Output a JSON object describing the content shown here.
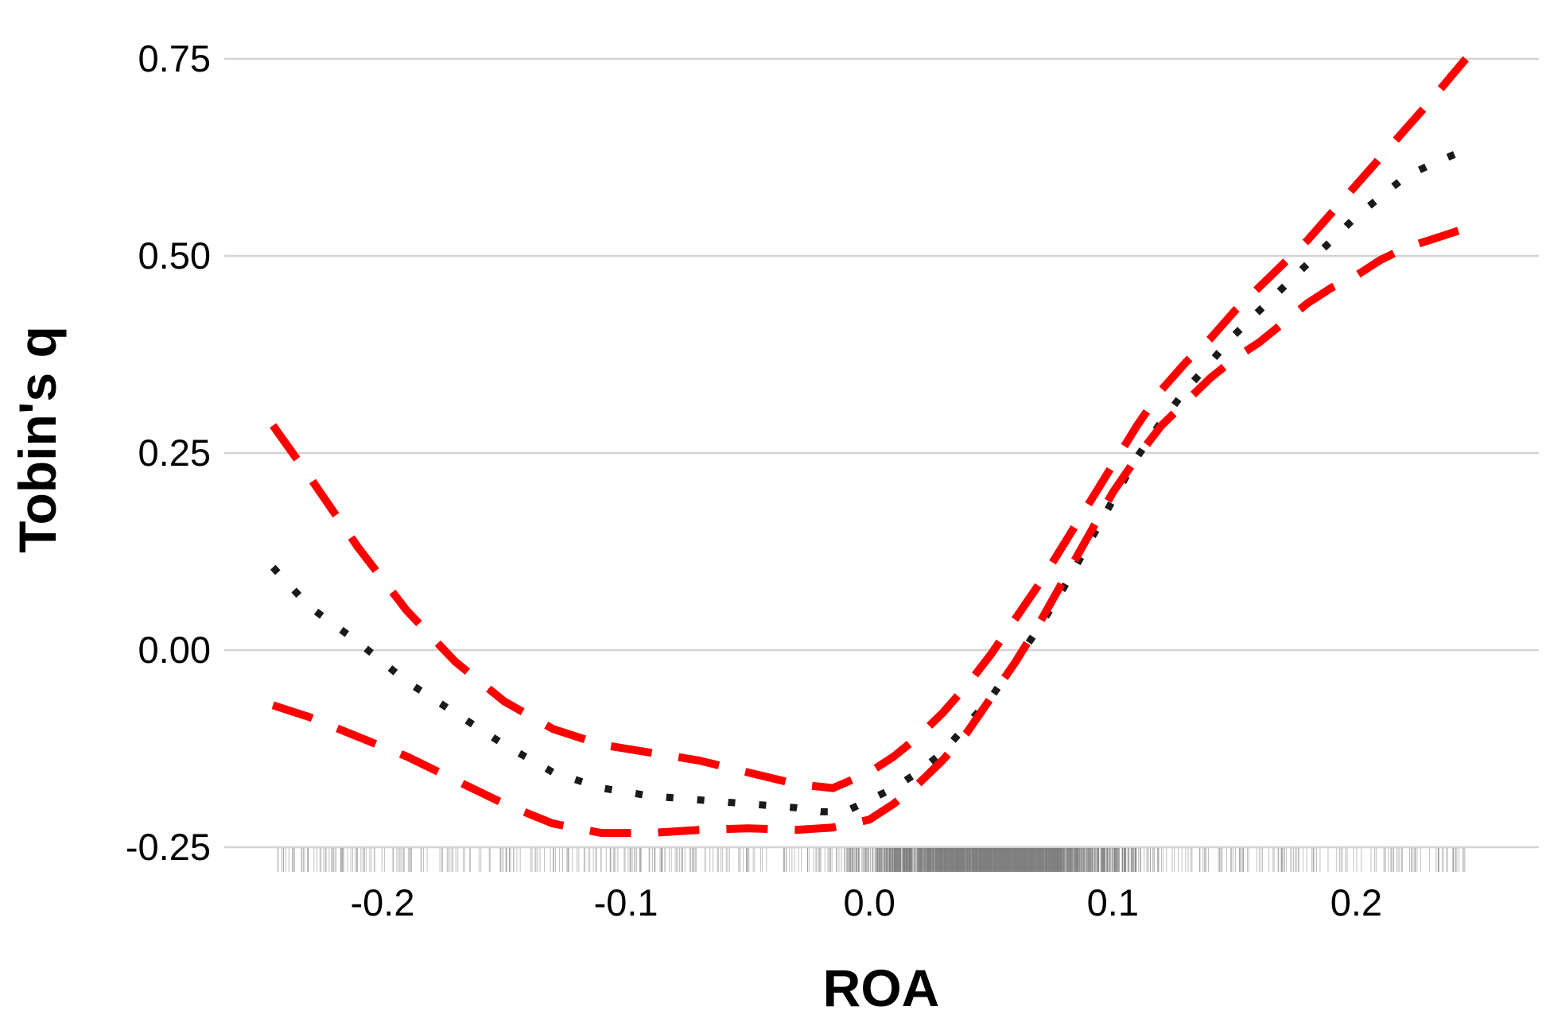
{
  "chart_data": {
    "type": "line",
    "title": "",
    "xlabel": "ROA",
    "ylabel": "Tobin's q",
    "xlim": [
      -0.265,
      0.275
    ],
    "ylim": [
      -0.25,
      0.75
    ],
    "x_ticks": [
      -0.2,
      -0.1,
      0.0,
      0.1,
      0.2
    ],
    "x_tick_labels": [
      "-0.2",
      "-0.1",
      "0.0",
      "0.1",
      "0.2"
    ],
    "y_ticks": [
      -0.25,
      0.0,
      0.25,
      0.5,
      0.75
    ],
    "y_tick_labels": [
      "-0.25",
      "0.00",
      "0.25",
      "0.50",
      "0.75"
    ],
    "grid": "horizontal major only",
    "legend": "none",
    "series": [
      {
        "role": "estimate",
        "style": "dotted",
        "color": "#1a1a1a",
        "x": [
          -0.245,
          -0.23,
          -0.21,
          -0.19,
          -0.17,
          -0.15,
          -0.13,
          -0.11,
          -0.09,
          -0.07,
          -0.05,
          -0.03,
          -0.02,
          -0.01,
          0.0,
          0.01,
          0.02,
          0.03,
          0.04,
          0.05,
          0.06,
          0.07,
          0.08,
          0.09,
          0.1,
          0.11,
          0.12,
          0.13,
          0.14,
          0.15,
          0.16,
          0.17,
          0.18,
          0.19,
          0.2,
          0.21,
          0.22,
          0.23,
          0.245
        ],
        "y": [
          0.105,
          0.055,
          0.01,
          -0.04,
          -0.08,
          -0.12,
          -0.155,
          -0.175,
          -0.185,
          -0.19,
          -0.195,
          -0.2,
          -0.205,
          -0.205,
          -0.19,
          -0.175,
          -0.155,
          -0.13,
          -0.095,
          -0.06,
          -0.015,
          0.03,
          0.08,
          0.135,
          0.19,
          0.245,
          0.29,
          0.33,
          0.365,
          0.4,
          0.43,
          0.46,
          0.49,
          0.52,
          0.55,
          0.575,
          0.6,
          0.615,
          0.635
        ]
      },
      {
        "role": "upper bound",
        "style": "dashed",
        "color": "#ff0000",
        "x": [
          -0.245,
          -0.23,
          -0.21,
          -0.19,
          -0.17,
          -0.15,
          -0.13,
          -0.11,
          -0.09,
          -0.07,
          -0.05,
          -0.03,
          -0.015,
          0.0,
          0.01,
          0.02,
          0.03,
          0.04,
          0.05,
          0.06,
          0.07,
          0.08,
          0.09,
          0.1,
          0.11,
          0.12,
          0.13,
          0.14,
          0.15,
          0.16,
          0.17,
          0.18,
          0.19,
          0.2,
          0.21,
          0.22,
          0.23,
          0.245
        ],
        "y": [
          0.285,
          0.22,
          0.13,
          0.05,
          -0.015,
          -0.065,
          -0.1,
          -0.12,
          -0.13,
          -0.14,
          -0.155,
          -0.17,
          -0.175,
          -0.155,
          -0.135,
          -0.11,
          -0.08,
          -0.045,
          -0.005,
          0.04,
          0.085,
          0.135,
          0.185,
          0.235,
          0.285,
          0.33,
          0.365,
          0.395,
          0.43,
          0.46,
          0.49,
          0.52,
          0.555,
          0.59,
          0.625,
          0.66,
          0.695,
          0.75
        ]
      },
      {
        "role": "lower bound",
        "style": "dashed",
        "color": "#ff0000",
        "x": [
          -0.245,
          -0.23,
          -0.21,
          -0.19,
          -0.17,
          -0.15,
          -0.13,
          -0.11,
          -0.09,
          -0.07,
          -0.05,
          -0.03,
          -0.015,
          0.0,
          0.01,
          0.02,
          0.03,
          0.04,
          0.05,
          0.06,
          0.07,
          0.08,
          0.09,
          0.1,
          0.11,
          0.12,
          0.13,
          0.14,
          0.15,
          0.16,
          0.17,
          0.18,
          0.19,
          0.2,
          0.21,
          0.22,
          0.23,
          0.245
        ],
        "y": [
          -0.07,
          -0.085,
          -0.11,
          -0.135,
          -0.165,
          -0.195,
          -0.22,
          -0.232,
          -0.232,
          -0.228,
          -0.226,
          -0.228,
          -0.225,
          -0.215,
          -0.195,
          -0.17,
          -0.14,
          -0.105,
          -0.06,
          -0.015,
          0.035,
          0.09,
          0.145,
          0.2,
          0.245,
          0.285,
          0.315,
          0.345,
          0.37,
          0.39,
          0.415,
          0.44,
          0.46,
          0.475,
          0.495,
          0.51,
          0.52,
          0.535
        ]
      }
    ],
    "rug": {
      "color": "#808080",
      "x_min": -0.245,
      "x_max": 0.245,
      "density_peak": 0.05
    }
  }
}
